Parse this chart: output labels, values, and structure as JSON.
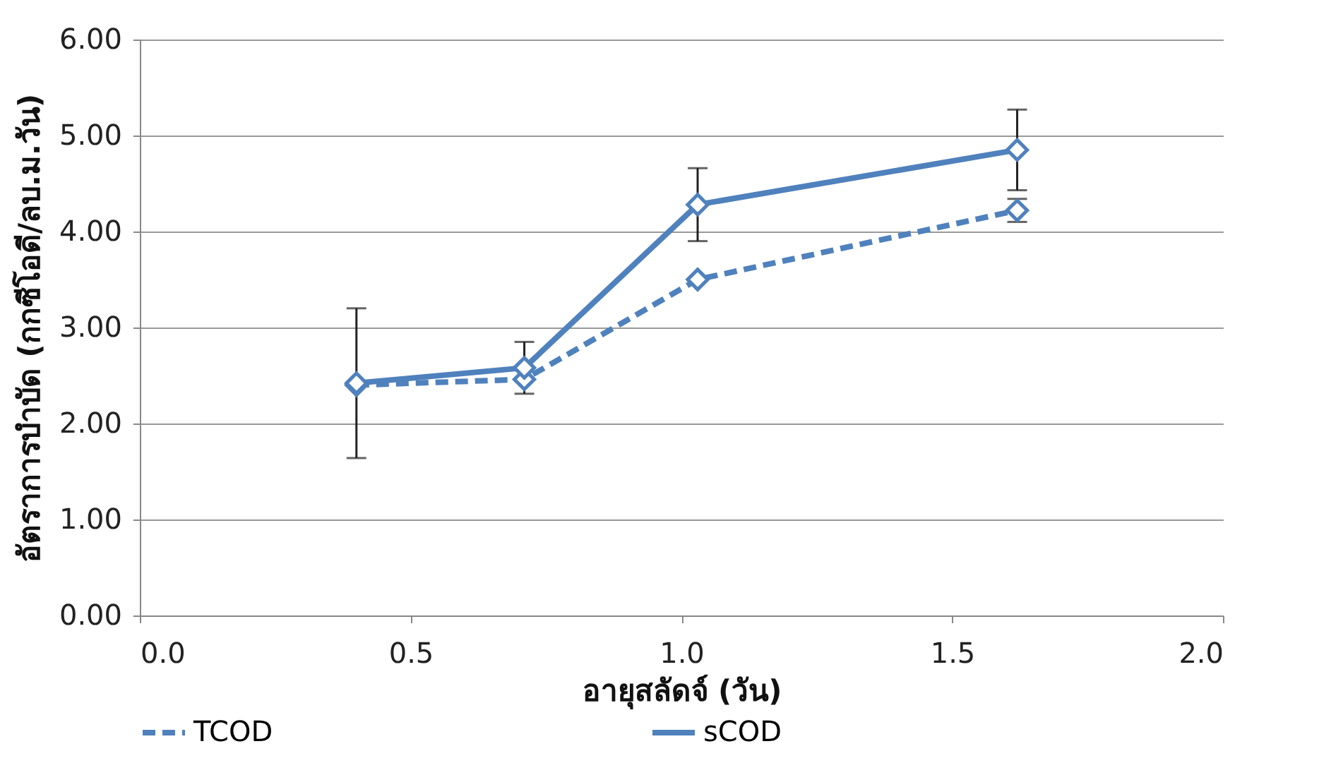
{
  "chart_data": {
    "type": "line",
    "xlabel": "อายุสลัดจ์ (วัน)",
    "ylabel": "อัตราการบำบัด (กกซีโอดี/ลบ.ม.วัน)",
    "x": [
      0.4,
      0.71,
      1.03,
      1.62
    ],
    "series": [
      {
        "name": "TCOD",
        "color": "#4f81bd",
        "line_style": "dashed",
        "values": [
          2.4,
          2.46,
          3.5,
          4.22
        ],
        "errors": [
          null,
          null,
          null,
          0.12
        ]
      },
      {
        "name": "sCOD",
        "color": "#4f81bd",
        "line_style": "solid",
        "values": [
          2.42,
          2.58,
          4.28,
          4.85
        ],
        "errors": [
          0.78,
          0.27,
          0.38,
          0.42
        ]
      }
    ],
    "xlim": [
      0,
      2
    ],
    "xticks": [
      {
        "value": 0,
        "label": "0.0"
      },
      {
        "value": 0.5,
        "label": "0.5"
      },
      {
        "value": 1,
        "label": "1.0"
      },
      {
        "value": 1.5,
        "label": "1.5"
      },
      {
        "value": 2,
        "label": "2.0"
      }
    ],
    "ylim": [
      0,
      6
    ],
    "yticks": [
      {
        "value": 0,
        "label": "0.00"
      },
      {
        "value": 1,
        "label": "1.00"
      },
      {
        "value": 2,
        "label": "2.00"
      },
      {
        "value": 3,
        "label": "3.00"
      },
      {
        "value": 4,
        "label": "4.00"
      },
      {
        "value": 5,
        "label": "5.00"
      },
      {
        "value": 6,
        "label": "6.00"
      }
    ],
    "grid": "y",
    "legend": "bottom",
    "marker": "diamond"
  }
}
